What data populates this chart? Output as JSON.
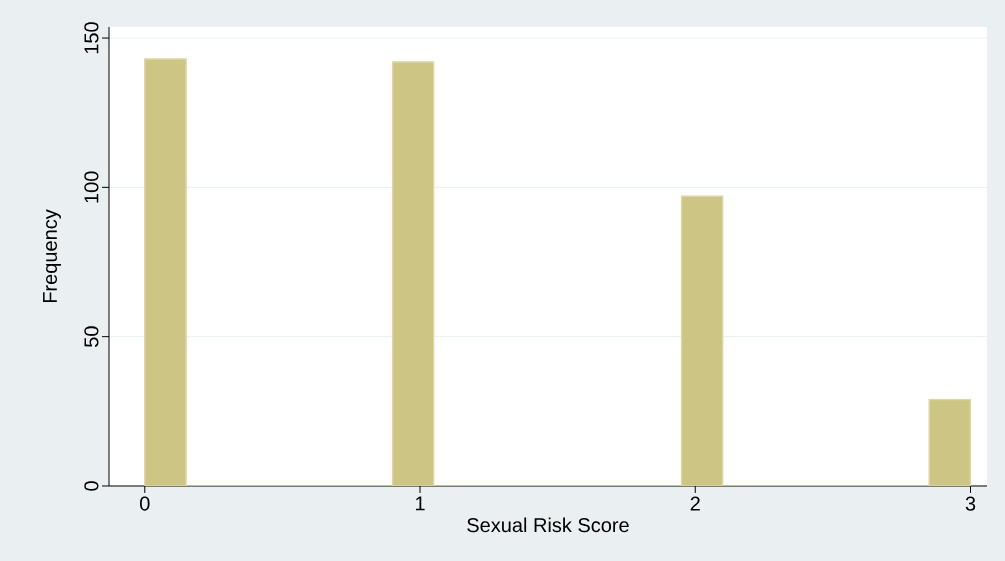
{
  "chart_data": {
    "type": "histogram",
    "xlabel": "Sexual Risk Score",
    "ylabel": "Frequency",
    "bins": [
      0,
      0.15,
      0.3,
      0.45,
      0.6,
      0.75,
      0.9,
      1.05,
      1.2,
      1.35,
      1.5,
      1.65,
      1.8,
      1.95,
      2.1,
      2.25,
      2.4,
      2.55,
      2.7,
      2.85,
      3.0
    ],
    "values": [
      143,
      0,
      0,
      0,
      0,
      0,
      142,
      0,
      0,
      0,
      0,
      0,
      0,
      97,
      0,
      0,
      0,
      0,
      0,
      29
    ],
    "color": "#cdc584",
    "xlim": [
      -0.13,
      3.06
    ],
    "ylim": [
      0,
      153.7
    ],
    "xticks": [
      0,
      1,
      2,
      3
    ],
    "yticks": [
      0,
      50,
      100,
      150
    ],
    "grid": "y"
  }
}
